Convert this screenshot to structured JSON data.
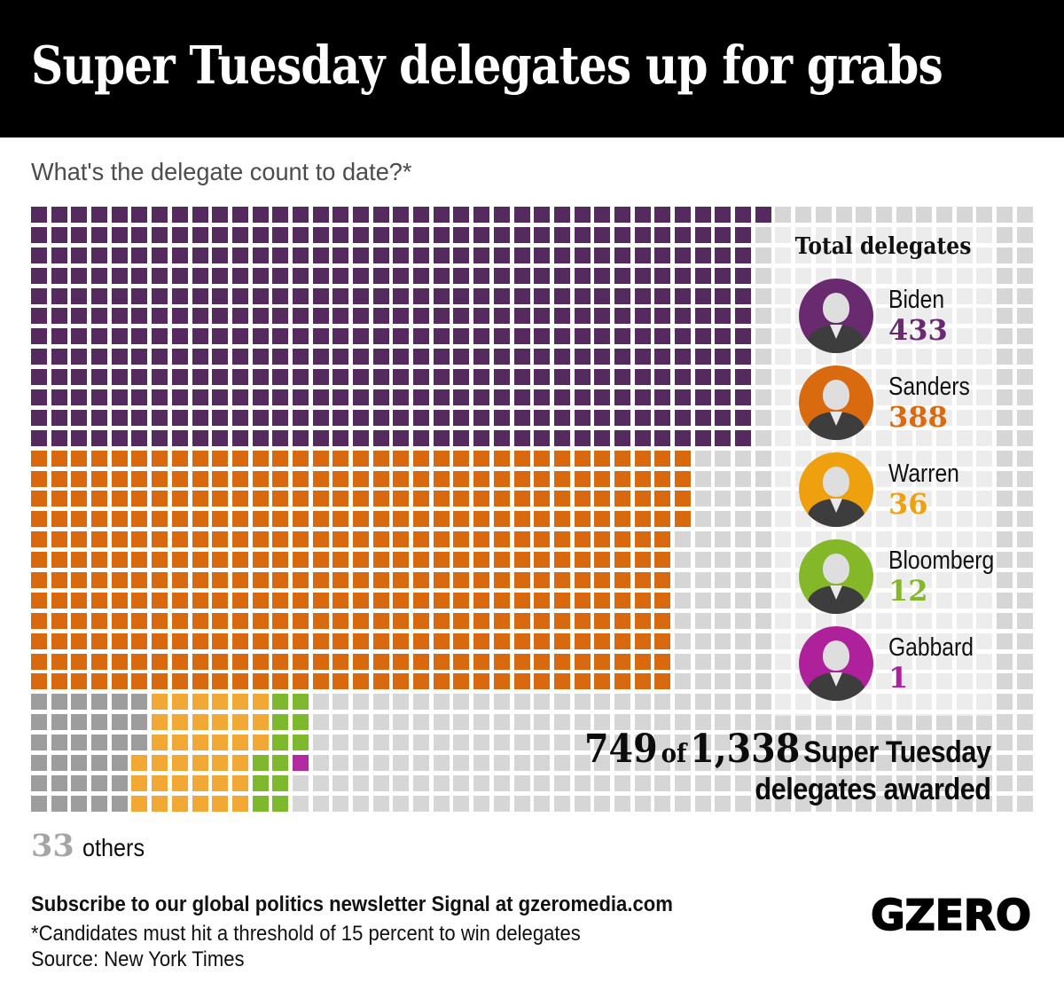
{
  "header": {
    "title": "Super Tuesday delegates up for grabs"
  },
  "subtitle": "What's the delegate count to date?*",
  "chart_data": {
    "type": "waffle",
    "title": "Super Tuesday delegates up for grabs",
    "subtitle": "What's the delegate count to date?*",
    "awarded": 749,
    "total": 1338,
    "unit": "delegates",
    "series": [
      {
        "name": "Biden",
        "value": 433,
        "color": "#552a5f"
      },
      {
        "name": "Sanders",
        "value": 388,
        "color": "#d9690f"
      },
      {
        "name": "Others",
        "value": 33,
        "color": "#9d9d9d"
      },
      {
        "name": "Warren",
        "value": 36,
        "color": "#f2a834"
      },
      {
        "name": "Bloomberg",
        "value": 12,
        "color": "#7eb82c"
      },
      {
        "name": "Gabbard",
        "value": 1,
        "color": "#b22aa0"
      }
    ],
    "layout": {
      "columns": 50,
      "rows": 30,
      "fill_order": "column-major",
      "filler_color": "#d6d6d6",
      "bands": [
        {
          "series": [
            "Biden"
          ],
          "row_start": 0,
          "row_count": 12
        },
        {
          "series": [
            "Sanders"
          ],
          "row_start": 12,
          "row_count": 12
        },
        {
          "series": [
            "Others",
            "Warren",
            "Bloomberg",
            "Gabbard"
          ],
          "row_start": 24,
          "row_count": 6
        }
      ],
      "legend_position": "right-overlay"
    }
  },
  "legend": {
    "title": "Total delegates",
    "entries": [
      {
        "name": "Biden",
        "value": "433",
        "color": "#6a2a70"
      },
      {
        "name": "Sanders",
        "value": "388",
        "color": "#d96a10"
      },
      {
        "name": "Warren",
        "value": "36",
        "color": "#eea00f"
      },
      {
        "name": "Bloomberg",
        "value": "12",
        "color": "#84b829"
      },
      {
        "name": "Gabbard",
        "value": "1",
        "color": "#ae219b"
      }
    ]
  },
  "awarded": {
    "count": "749",
    "of_label": "of",
    "total": "1,338",
    "suffix": "Super Tuesday",
    "line2": "delegates awarded"
  },
  "others": {
    "value": "33",
    "label": "others"
  },
  "footer": {
    "subscribe": "Subscribe to our global politics newsletter Signal at gzeromedia.com",
    "footnote": "*Candidates must hit a threshold of 15 percent to win delegates",
    "source": "Source: New York Times",
    "logo": "GZERO"
  }
}
